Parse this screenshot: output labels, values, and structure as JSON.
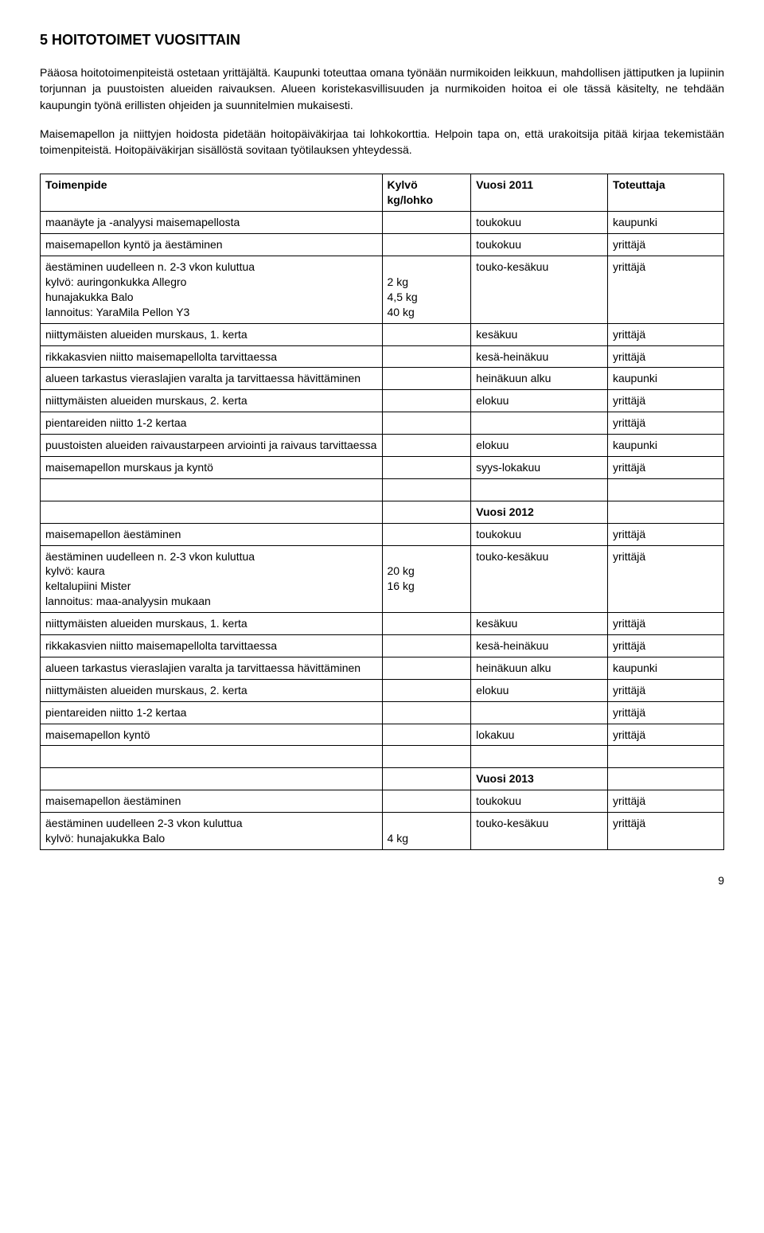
{
  "heading": "5 HOITOTOIMET VUOSITTAIN",
  "para1": "Pääosa hoitotoimenpiteistä ostetaan yrittäjältä. Kaupunki toteuttaa omana työnään nurmikoiden leikkuun, mahdollisen jättiputken ja lupiinin torjunnan ja puustoisten alueiden raivauksen. Alueen koristekasvillisuuden ja nurmikoiden hoitoa ei ole tässä käsitelty, ne tehdään kaupungin työnä erillisten ohjeiden ja suunnitelmien mukaisesti.",
  "para2": "Maisemapellon ja niittyjen hoidosta pidetään hoitopäiväkirjaa tai lohkokorttia. Helpoin tapa on, että urakoitsija pitää kirjaa tekemistään toimenpiteistä. Hoitopäiväkirjan sisällöstä sovitaan työtilauksen yhteydessä.",
  "table": {
    "headers": [
      "Toimenpide",
      "Kylvö kg/lohko",
      "Vuosi 2011",
      "Toteuttaja"
    ],
    "rows": [
      {
        "c1": "maanäyte ja -analyysi maisemapellosta",
        "c2": "",
        "c3": "toukokuu",
        "c4": "kaupunki"
      },
      {
        "c1": "maisemapellon kyntö ja äestäminen",
        "c2": "",
        "c3": "toukokuu",
        "c4": "yrittäjä"
      },
      {
        "c1": "äestäminen uudelleen n. 2-3 vkon kuluttua\nkylvö: auringonkukka Allegro\nhunajakukka Balo\nlannoitus: YaraMila Pellon Y3",
        "c2": "\n2 kg\n4,5 kg\n40 kg",
        "c3": "touko-kesäkuu",
        "c4": "yrittäjä"
      },
      {
        "c1": "niittymäisten alueiden murskaus, 1. kerta",
        "c2": "",
        "c3": "kesäkuu",
        "c4": "yrittäjä"
      },
      {
        "c1": "rikkakasvien niitto maisemapellolta tarvittaessa",
        "c2": "",
        "c3": "kesä-heinäkuu",
        "c4": "yrittäjä"
      },
      {
        "c1": "alueen tarkastus vieraslajien varalta ja tarvittaessa hävittäminen",
        "c2": "",
        "c3": "heinäkuun alku",
        "c4": "kaupunki"
      },
      {
        "c1": "niittymäisten alueiden murskaus, 2. kerta",
        "c2": "",
        "c3": "elokuu",
        "c4": "yrittäjä"
      },
      {
        "c1": "pientareiden niitto 1-2 kertaa",
        "c2": "",
        "c3": "",
        "c4": "yrittäjä"
      },
      {
        "c1": "puustoisten alueiden raivaustarpeen arviointi ja raivaus tarvittaessa",
        "c2": "",
        "c3": "elokuu",
        "c4": "kaupunki"
      },
      {
        "c1": "maisemapellon murskaus ja kyntö",
        "c2": "",
        "c3": "syys-lokakuu",
        "c4": "yrittäjä"
      },
      {
        "blank": true
      },
      {
        "year": "Vuosi 2012"
      },
      {
        "c1": "maisemapellon äestäminen",
        "c2": "",
        "c3": "toukokuu",
        "c4": "yrittäjä"
      },
      {
        "c1": "äestäminen uudelleen n. 2-3 vkon kuluttua\nkylvö: kaura\nkeltalupiini Mister\nlannoitus: maa-analyysin mukaan",
        "c2": "\n20 kg\n16 kg",
        "c3": "touko-kesäkuu",
        "c4": "yrittäjä"
      },
      {
        "c1": "niittymäisten alueiden murskaus, 1. kerta",
        "c2": "",
        "c3": "kesäkuu",
        "c4": "yrittäjä"
      },
      {
        "c1": "rikkakasvien niitto maisemapellolta tarvittaessa",
        "c2": "",
        "c3": "kesä-heinäkuu",
        "c4": "yrittäjä"
      },
      {
        "c1": "alueen tarkastus vieraslajien varalta ja tarvittaessa hävittäminen",
        "c2": "",
        "c3": "heinäkuun alku",
        "c4": "kaupunki"
      },
      {
        "c1": "niittymäisten alueiden murskaus, 2. kerta",
        "c2": "",
        "c3": "elokuu",
        "c4": "yrittäjä"
      },
      {
        "c1": "pientareiden niitto 1-2 kertaa",
        "c2": "",
        "c3": "",
        "c4": "yrittäjä"
      },
      {
        "c1": "maisemapellon kyntö",
        "c2": "",
        "c3": "lokakuu",
        "c4": "yrittäjä"
      },
      {
        "blank": true
      },
      {
        "year": "Vuosi 2013"
      },
      {
        "c1": "maisemapellon äestäminen",
        "c2": "",
        "c3": "toukokuu",
        "c4": "yrittäjä"
      },
      {
        "c1": "äestäminen uudelleen 2-3 vkon kuluttua\nkylvö: hunajakukka Balo",
        "c2": "\n4 kg",
        "c3": "touko-kesäkuu",
        "c4": "yrittäjä"
      }
    ]
  },
  "pageNumber": "9"
}
